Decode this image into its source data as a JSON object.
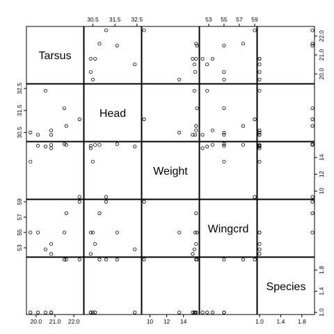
{
  "chart_data": {
    "type": "scatter",
    "subtype": "pairs-matrix",
    "variables": [
      "Tarsus",
      "Head",
      "Weight",
      "Wingcrd",
      "Species"
    ],
    "ranges": {
      "Tarsus": [
        19.6,
        22.4
      ],
      "Head": [
        30.2,
        32.6
      ],
      "Weight": [
        9.3,
        15.6
      ],
      "Wingcrd": [
        52.1,
        59.0
      ],
      "Species": [
        1,
        2
      ]
    },
    "ticks": {
      "Tarsus": [
        "20.0",
        "21.0",
        "22.0"
      ],
      "Head": [
        "30.5",
        "31.5",
        "32.5"
      ],
      "Weight": [
        "10",
        "12",
        "14"
      ],
      "Wingcrd": [
        "53",
        "55",
        "57",
        "59"
      ],
      "Species": [
        "1.0",
        "1.4",
        "1.8"
      ]
    },
    "records": [
      {
        "Tarsus": 20.8,
        "Head": 30.6,
        "Weight": 15.5,
        "Wingcrd": 53.5,
        "Species": 1
      },
      {
        "Tarsus": 21.6,
        "Head": 30.8,
        "Weight": 15.5,
        "Wingcrd": 57.5,
        "Species": 2
      },
      {
        "Tarsus": 21.5,
        "Head": 31.6,
        "Weight": 15.6,
        "Wingcrd": 55.0,
        "Species": 2
      },
      {
        "Tarsus": 22.3,
        "Head": 31.1,
        "Weight": 9.3,
        "Wingcrd": 59.0,
        "Species": 2
      },
      {
        "Tarsus": 20.1,
        "Head": 30.4,
        "Weight": 15.4,
        "Wingcrd": 55.0,
        "Species": 1
      },
      {
        "Tarsus": 19.7,
        "Head": 30.5,
        "Weight": 13.5,
        "Wingcrd": 55.0,
        "Species": 1
      },
      {
        "Tarsus": 20.8,
        "Head": 30.4,
        "Weight": 15.1,
        "Wingcrd": 52.2,
        "Species": 1
      },
      {
        "Tarsus": 20.5,
        "Head": 32.4,
        "Weight": 15.3,
        "Wingcrd": 52.8,
        "Species": 1
      }
    ]
  }
}
